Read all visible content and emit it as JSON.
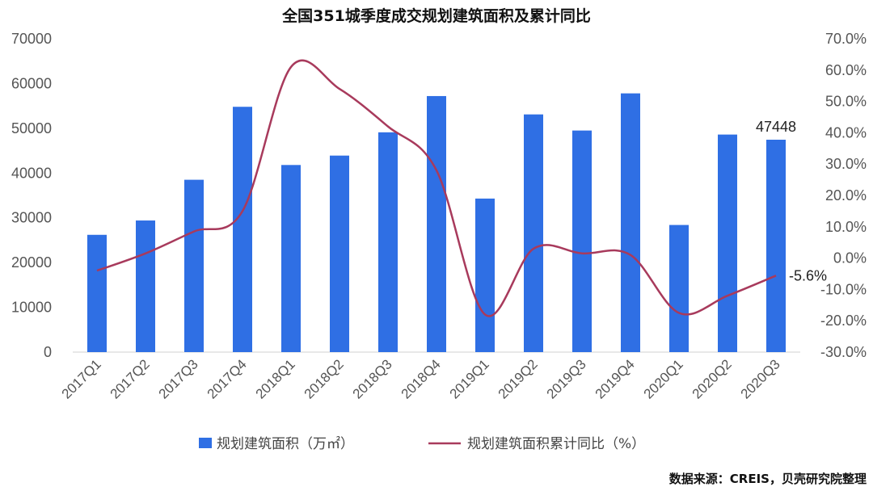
{
  "chart_data": {
    "type": "bar",
    "title": "全国351城季度成交规划建筑面积及累计同比",
    "categories": [
      "2017Q1",
      "2017Q2",
      "2017Q3",
      "2017Q4",
      "2018Q1",
      "2018Q2",
      "2018Q3",
      "2018Q4",
      "2019Q1",
      "2019Q2",
      "2019Q3",
      "2019Q4",
      "2020Q1",
      "2020Q2",
      "2020Q3"
    ],
    "series": [
      {
        "name": "规划建筑面积（万㎡）",
        "type": "bar",
        "axis": "left",
        "color": "#2f6fe4",
        "values": [
          26200,
          29400,
          38500,
          54800,
          41800,
          43900,
          49100,
          57200,
          34300,
          53100,
          49500,
          57800,
          28400,
          48600,
          47448
        ]
      },
      {
        "name": "规划建筑面积累计同比（%）",
        "type": "line",
        "axis": "right",
        "color": "#a83a5c",
        "values": [
          -4.0,
          1.5,
          8.5,
          15.0,
          61.0,
          54.0,
          42.0,
          28.0,
          -18.0,
          3.0,
          1.5,
          1.0,
          -17.5,
          -12.0,
          -5.6
        ]
      }
    ],
    "ylim_left": [
      0,
      70000
    ],
    "ylim_right": [
      -30.0,
      70.0
    ],
    "yticks_left": [
      "70000",
      "60000",
      "50000",
      "40000",
      "30000",
      "20000",
      "10000",
      "0"
    ],
    "yticks_right": [
      "70.0%",
      "60.0%",
      "50.0%",
      "40.0%",
      "30.0%",
      "20.0%",
      "10.0%",
      "0.0%",
      "-10.0%",
      "-20.0%",
      "-30.0%"
    ],
    "annotations": [
      {
        "series": 0,
        "index": 14,
        "text": "47448"
      },
      {
        "series": 1,
        "index": 14,
        "text": "-5.6%"
      }
    ],
    "legend_position": "bottom",
    "grid": false,
    "source": "数据来源：CREIS，贝壳研究院整理"
  }
}
